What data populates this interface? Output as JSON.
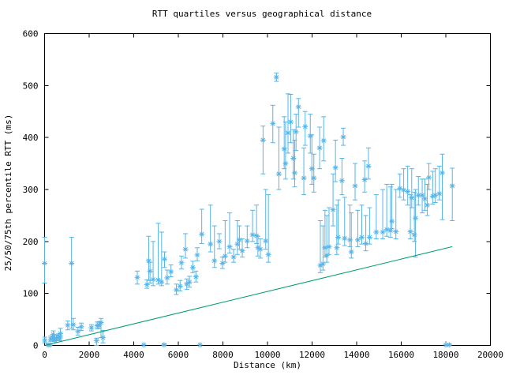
{
  "chart_data": {
    "type": "scatter",
    "subtype": "errorbar-quartiles",
    "title": "RTT quartiles versus geographical distance",
    "xlabel": "Distance (km)",
    "ylabel": "25/50/75th percentile RTT (ms)",
    "xlim": [
      0,
      20000
    ],
    "ylim": [
      0,
      600
    ],
    "x_ticks": [
      0,
      2000,
      4000,
      6000,
      8000,
      10000,
      12000,
      14000,
      16000,
      18000,
      20000
    ],
    "y_ticks": [
      0,
      100,
      200,
      300,
      400,
      500,
      600
    ],
    "grid": false,
    "legend": "none",
    "background_color": "#ffffff",
    "axis_color": "#000000",
    "point_color": "#56b4e9",
    "line_color": "#009e73",
    "marker": "asterisk",
    "reference_line": {
      "x1": 0,
      "y1": 0,
      "x2": 18290,
      "y2": 190
    },
    "points_format": [
      "distance_km",
      "q25_ms",
      "median_ms",
      "q75_ms"
    ],
    "points": [
      [
        0,
        120,
        158,
        208
      ],
      [
        10,
        5,
        10,
        16
      ],
      [
        160,
        0,
        1,
        3
      ],
      [
        240,
        0,
        1,
        3
      ],
      [
        270,
        8,
        12,
        18
      ],
      [
        360,
        10,
        15,
        21
      ],
      [
        390,
        14,
        21,
        28
      ],
      [
        450,
        7,
        11,
        16
      ],
      [
        530,
        9,
        14,
        20
      ],
      [
        620,
        11,
        16,
        22
      ],
      [
        680,
        9,
        14,
        19
      ],
      [
        710,
        16,
        23,
        33
      ],
      [
        1040,
        30,
        39,
        47
      ],
      [
        1210,
        33,
        158,
        208
      ],
      [
        1290,
        30,
        40,
        52
      ],
      [
        1500,
        20,
        27,
        35
      ],
      [
        1650,
        29,
        36,
        43
      ],
      [
        2100,
        28,
        34,
        40
      ],
      [
        2330,
        0,
        9,
        14
      ],
      [
        2360,
        32,
        38,
        45
      ],
      [
        2450,
        33,
        39,
        46
      ],
      [
        2530,
        15,
        44,
        52
      ],
      [
        2620,
        5,
        15,
        29
      ],
      [
        4160,
        118,
        131,
        143
      ],
      [
        4450,
        0,
        1,
        2
      ],
      [
        4590,
        110,
        117,
        126
      ],
      [
        4670,
        125,
        163,
        210
      ],
      [
        4730,
        120,
        143,
        160
      ],
      [
        4870,
        115,
        127,
        200
      ],
      [
        5100,
        118,
        126,
        235
      ],
      [
        5250,
        115,
        122,
        218
      ],
      [
        5360,
        0,
        1,
        3
      ],
      [
        5380,
        150,
        166,
        180
      ],
      [
        5500,
        118,
        130,
        145
      ],
      [
        5670,
        132,
        142,
        155
      ],
      [
        5910,
        98,
        107,
        118
      ],
      [
        6080,
        105,
        114,
        125
      ],
      [
        6140,
        147,
        159,
        172
      ],
      [
        6320,
        168,
        185,
        215
      ],
      [
        6380,
        108,
        118,
        128
      ],
      [
        6500,
        112,
        122,
        133
      ],
      [
        6650,
        140,
        150,
        162
      ],
      [
        6790,
        122,
        132,
        143
      ],
      [
        6850,
        163,
        174,
        188
      ],
      [
        6970,
        0,
        1,
        2
      ],
      [
        7050,
        196,
        214,
        262
      ],
      [
        7440,
        180,
        195,
        270
      ],
      [
        7620,
        150,
        163,
        230
      ],
      [
        7840,
        186,
        200,
        215
      ],
      [
        7980,
        148,
        158,
        170
      ],
      [
        8100,
        160,
        172,
        240
      ],
      [
        8300,
        178,
        190,
        255
      ],
      [
        8480,
        160,
        170,
        185
      ],
      [
        8650,
        175,
        195,
        240
      ],
      [
        8740,
        185,
        203,
        230
      ],
      [
        8870,
        170,
        182,
        205
      ],
      [
        9090,
        188,
        201,
        230
      ],
      [
        9330,
        200,
        213,
        260
      ],
      [
        9510,
        196,
        211,
        270
      ],
      [
        9570,
        172,
        188,
        210
      ],
      [
        9680,
        168,
        185,
        205
      ],
      [
        9800,
        330,
        395,
        422
      ],
      [
        9920,
        185,
        201,
        300
      ],
      [
        10040,
        160,
        175,
        290
      ],
      [
        10240,
        390,
        427,
        462
      ],
      [
        10400,
        508,
        516,
        524
      ],
      [
        10510,
        300,
        330,
        420
      ],
      [
        10750,
        340,
        378,
        440
      ],
      [
        10810,
        320,
        350,
        430
      ],
      [
        10920,
        370,
        409,
        484
      ],
      [
        11040,
        390,
        430,
        483
      ],
      [
        11160,
        320,
        360,
        415
      ],
      [
        11220,
        305,
        332,
        395
      ],
      [
        11280,
        375,
        411,
        445
      ],
      [
        11390,
        420,
        459,
        475
      ],
      [
        11630,
        290,
        322,
        380
      ],
      [
        11690,
        385,
        421,
        450
      ],
      [
        11920,
        370,
        403,
        445
      ],
      [
        11990,
        310,
        340,
        405
      ],
      [
        12080,
        295,
        322,
        368
      ],
      [
        12340,
        340,
        380,
        420
      ],
      [
        12370,
        140,
        154,
        240
      ],
      [
        12490,
        145,
        157,
        230
      ],
      [
        12520,
        355,
        394,
        440
      ],
      [
        12580,
        170,
        188,
        260
      ],
      [
        12660,
        160,
        173,
        250
      ],
      [
        12760,
        175,
        190,
        265
      ],
      [
        12940,
        230,
        261,
        330
      ],
      [
        13050,
        315,
        342,
        395
      ],
      [
        13110,
        175,
        188,
        270
      ],
      [
        13170,
        195,
        208,
        280
      ],
      [
        13340,
        290,
        317,
        360
      ],
      [
        13400,
        385,
        401,
        418
      ],
      [
        13460,
        192,
        206,
        285
      ],
      [
        13700,
        190,
        203,
        270
      ],
      [
        13760,
        168,
        180,
        255
      ],
      [
        13930,
        280,
        307,
        350
      ],
      [
        14050,
        190,
        203,
        260
      ],
      [
        14230,
        195,
        208,
        270
      ],
      [
        14360,
        295,
        319,
        355
      ],
      [
        14410,
        182,
        196,
        250
      ],
      [
        14530,
        320,
        345,
        380
      ],
      [
        14580,
        195,
        208,
        265
      ],
      [
        14880,
        205,
        218,
        290
      ],
      [
        15170,
        205,
        218,
        300
      ],
      [
        15350,
        210,
        223,
        310
      ],
      [
        15520,
        208,
        221,
        305
      ],
      [
        15580,
        225,
        239,
        310
      ],
      [
        15760,
        205,
        219,
        300
      ],
      [
        15940,
        285,
        302,
        330
      ],
      [
        16110,
        280,
        299,
        340
      ],
      [
        16290,
        270,
        296,
        345
      ],
      [
        16410,
        205,
        219,
        290
      ],
      [
        16470,
        265,
        284,
        340
      ],
      [
        16590,
        200,
        213,
        295
      ],
      [
        16640,
        170,
        245,
        300
      ],
      [
        16770,
        270,
        289,
        325
      ],
      [
        16940,
        255,
        289,
        320
      ],
      [
        17060,
        260,
        282,
        320
      ],
      [
        17170,
        250,
        270,
        310
      ],
      [
        17240,
        300,
        323,
        350
      ],
      [
        17410,
        272,
        287,
        335
      ],
      [
        17530,
        275,
        289,
        340
      ],
      [
        17710,
        280,
        292,
        345
      ],
      [
        17840,
        242,
        332,
        368
      ],
      [
        18000,
        0,
        1,
        2
      ],
      [
        18150,
        0,
        1,
        3
      ],
      [
        18290,
        240,
        307,
        341
      ]
    ]
  }
}
